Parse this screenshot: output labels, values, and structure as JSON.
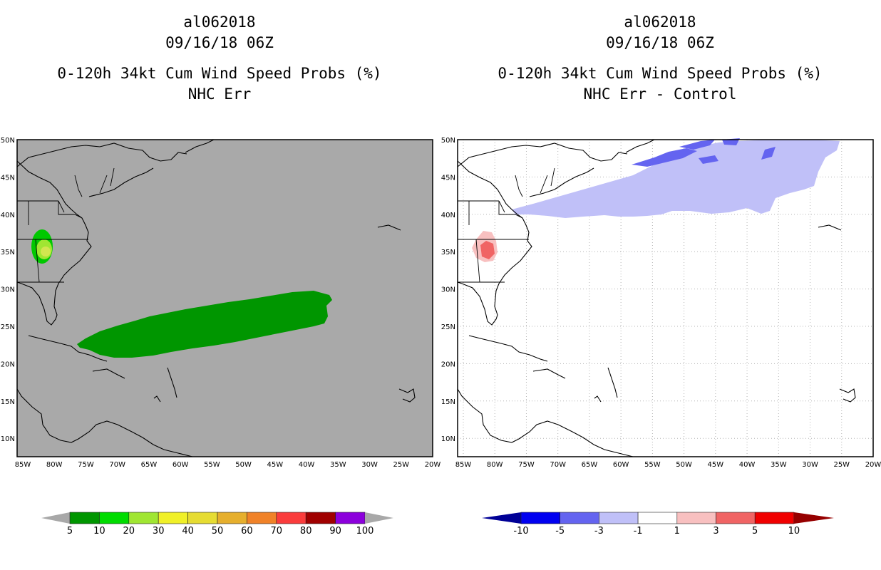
{
  "left_panel": {
    "storm_id": "al062018",
    "datetime": "09/16/18 06Z",
    "product": "0-120h 34kt Cum Wind Speed Probs (%)",
    "subtitle": "NHC Err",
    "background_color": "#a9a9a9",
    "colorbar": {
      "labels": [
        "5",
        "10",
        "20",
        "30",
        "40",
        "50",
        "60",
        "70",
        "80",
        "90",
        "100"
      ],
      "colors": [
        "#009600",
        "#00dc00",
        "#a0e632",
        "#f0f028",
        "#e6dc32",
        "#e6af2d",
        "#f08228",
        "#fa3c3c",
        "#a00000",
        "#8c00dc"
      ],
      "arrow_color": "#a8a8a8"
    }
  },
  "right_panel": {
    "storm_id": "al062018",
    "datetime": "09/16/18 06Z",
    "product": "0-120h 34kt Cum Wind Speed Probs (%)",
    "subtitle": "NHC Err - Control",
    "background_color": "#ffffff",
    "colorbar": {
      "labels": [
        "-10",
        "-5",
        "-3",
        "-1",
        "1",
        "3",
        "5",
        "10"
      ],
      "colors": [
        "#0000f0",
        "#6464f0",
        "#c0c0f8",
        "#ffffff",
        "#f8c0c0",
        "#f06464",
        "#f00000"
      ],
      "left_arrow_color": "#000096",
      "right_arrow_color": "#960000"
    }
  },
  "map_axes": {
    "lon_labels": [
      "85W",
      "80W",
      "75W",
      "70W",
      "65W",
      "60W",
      "55W",
      "50W",
      "45W",
      "40W",
      "35W",
      "30W",
      "25W",
      "20W"
    ],
    "lat_labels": [
      "50N",
      "45N",
      "40N",
      "35N",
      "30N",
      "25N",
      "20N",
      "15N",
      "10N"
    ]
  }
}
